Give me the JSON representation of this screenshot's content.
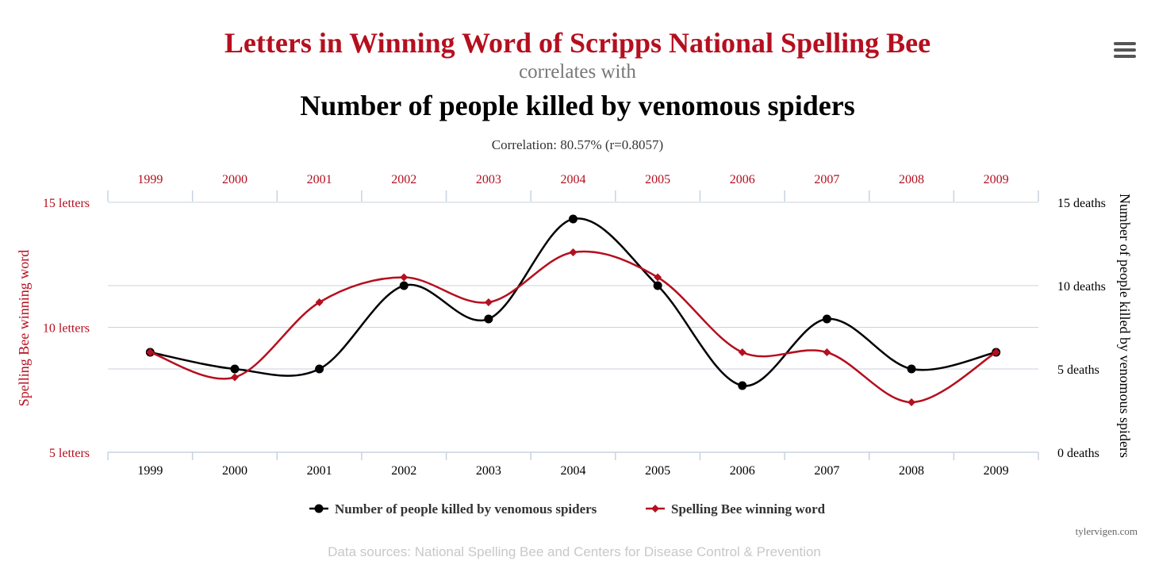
{
  "header": {
    "title": "Letters in Winning Word of Scripps National Spelling Bee",
    "connector": "correlates with",
    "title2": "Number of people killed by venomous spiders",
    "subtitle": "Correlation: 80.57% (r=0.8057)"
  },
  "footer": {
    "credit": "tylervigen.com",
    "sources": "Data sources: National Spelling Bee and Centers for Disease Control & Prevention"
  },
  "colors": {
    "spelling": "#b50f1f",
    "spiders": "#000000",
    "grid": "#c8d3de"
  },
  "icons": {
    "menu": "hamburger-menu-icon"
  },
  "chart_data": {
    "type": "line",
    "x": [
      "1999",
      "2000",
      "2001",
      "2002",
      "2003",
      "2004",
      "2005",
      "2006",
      "2007",
      "2008",
      "2009"
    ],
    "series": [
      {
        "name": "Number of people killed by venomous spiders",
        "axis": "right",
        "marker": "circle",
        "color": "#000000",
        "values": [
          6,
          5,
          5,
          10,
          8,
          14,
          10,
          4,
          8,
          5,
          6
        ]
      },
      {
        "name": "Spelling Bee winning word",
        "axis": "left",
        "marker": "diamond",
        "color": "#b50f1f",
        "values": [
          9,
          8,
          11,
          12,
          11,
          13,
          12,
          9,
          9,
          7,
          9
        ]
      }
    ],
    "y_left": {
      "label": "Spelling Bee winning word",
      "range": [
        5,
        15
      ],
      "ticks": [
        {
          "value": 5,
          "label": "5 letters"
        },
        {
          "value": 10,
          "label": "10 letters"
        },
        {
          "value": 15,
          "label": "15 letters"
        }
      ]
    },
    "y_right": {
      "label": "Number of people killed by venomous spiders",
      "range": [
        0,
        15
      ],
      "ticks": [
        {
          "value": 0,
          "label": "0 deaths"
        },
        {
          "value": 5,
          "label": "5 deaths"
        },
        {
          "value": 10,
          "label": "10 deaths"
        },
        {
          "value": 15,
          "label": "15 deaths"
        }
      ]
    },
    "grid": true,
    "legend": "bottom-center"
  }
}
